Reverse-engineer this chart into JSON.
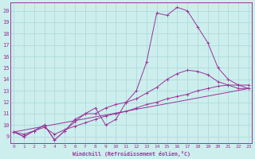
{
  "xlabel": "Windchill (Refroidissement éolien,°C)",
  "ylabel": "",
  "bg_color": "#cceeed",
  "line_color": "#993399",
  "grid_color": "#aad8d8",
  "x_ticks": [
    0,
    1,
    2,
    3,
    4,
    5,
    6,
    7,
    8,
    9,
    10,
    11,
    12,
    13,
    14,
    15,
    16,
    17,
    18,
    19,
    20,
    21,
    22,
    23
  ],
  "y_ticks": [
    9,
    10,
    11,
    12,
    13,
    14,
    15,
    16,
    17,
    18,
    19,
    20
  ],
  "xlim": [
    -0.3,
    23.3
  ],
  "ylim": [
    8.4,
    20.7
  ],
  "series1_x": [
    0,
    1,
    2,
    3,
    4,
    5,
    6,
    7,
    8,
    9,
    10,
    11,
    12,
    13,
    14,
    15,
    16,
    17,
    18,
    19,
    20,
    21,
    22,
    23
  ],
  "series1_y": [
    9.4,
    9.0,
    9.5,
    10.0,
    8.7,
    9.5,
    10.5,
    11.0,
    11.5,
    10.0,
    10.5,
    12.0,
    13.0,
    15.5,
    19.8,
    19.6,
    20.3,
    20.0,
    18.6,
    17.2,
    15.0,
    14.0,
    13.5,
    13.2
  ],
  "series2_x": [
    0,
    1,
    2,
    3,
    4,
    5,
    6,
    7,
    8,
    9,
    10,
    11,
    12,
    13,
    14,
    15,
    16,
    17,
    18,
    19,
    20,
    21,
    22,
    23
  ],
  "series2_y": [
    9.4,
    9.0,
    9.5,
    10.0,
    8.7,
    9.5,
    10.3,
    11.0,
    11.0,
    11.5,
    11.8,
    12.0,
    12.3,
    12.8,
    13.3,
    14.0,
    14.5,
    14.8,
    14.7,
    14.4,
    13.8,
    13.5,
    13.2,
    13.2
  ],
  "series3_x": [
    0,
    1,
    2,
    3,
    4,
    5,
    6,
    7,
    8,
    9,
    10,
    11,
    12,
    13,
    14,
    15,
    16,
    17,
    18,
    19,
    20,
    21,
    22,
    23
  ],
  "series3_y": [
    9.4,
    9.2,
    9.5,
    9.8,
    9.2,
    9.6,
    9.9,
    10.2,
    10.5,
    10.8,
    11.0,
    11.2,
    11.5,
    11.8,
    12.0,
    12.3,
    12.5,
    12.7,
    13.0,
    13.2,
    13.4,
    13.5,
    13.5,
    13.5
  ],
  "series4_x": [
    0,
    23
  ],
  "series4_y": [
    9.4,
    13.2
  ]
}
